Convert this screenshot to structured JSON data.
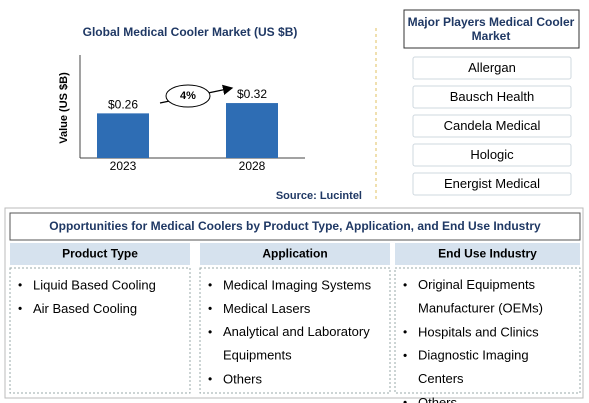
{
  "chart_data": {
    "type": "bar",
    "title": "Global Medical Cooler Market (US $B)",
    "ylabel": "Value (US $B)",
    "categories": [
      "2023",
      "2028"
    ],
    "values": [
      0.26,
      0.32
    ],
    "value_labels": [
      "$0.26",
      "$0.32"
    ],
    "color": "#2e6db4",
    "ylim": [
      0,
      0.6
    ],
    "annotation": "4%",
    "source": "Source: Lucintel"
  },
  "players": {
    "title": "Major Players Medical Cooler Market",
    "items": [
      "Allergan",
      "Bausch Health",
      "Candela Medical",
      "Hologic",
      "Energist Medical"
    ]
  },
  "opportunities": {
    "title": "Opportunities for Medical Coolers by Product Type, Application, and End Use Industry",
    "columns": [
      {
        "header": "Product Type",
        "items": [
          "Liquid Based Cooling",
          "Air Based Cooling"
        ]
      },
      {
        "header": "Application",
        "items": [
          "Medical Imaging Systems",
          "Medical Lasers",
          "Analytical and Laboratory Equipments",
          "Others"
        ]
      },
      {
        "header": "End Use Industry",
        "items": [
          "Original Equipments Manufacturer (OEMs)",
          "Hospitals and Clinics",
          "Diagnostic Imaging Centers",
          "Others"
        ]
      }
    ]
  }
}
